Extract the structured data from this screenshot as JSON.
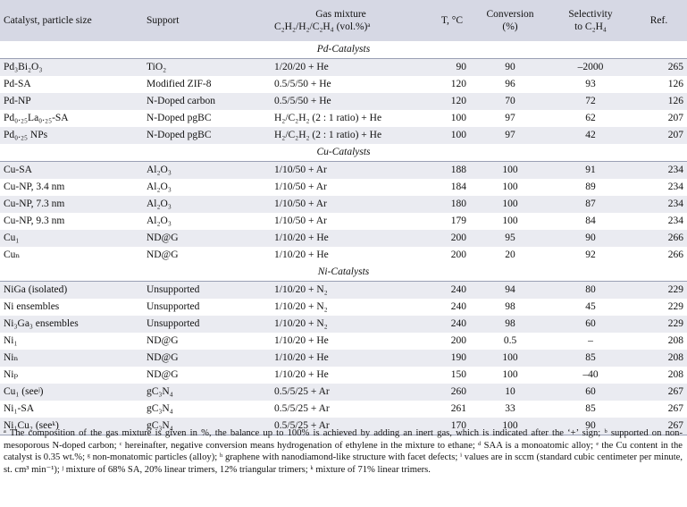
{
  "header": {
    "catalyst": "Catalyst, particle size",
    "support": "Support",
    "gas_line1": "Gas mixture",
    "gas_line2": "C₂H₂/H₂/C₂H₄ (vol.%)ᵃ",
    "temperature": "T, °C",
    "conversion_line1": "Conversion",
    "conversion_line2": "(%)",
    "selectivity_line1": "Selectivity",
    "selectivity_line2": "to C₂H₄",
    "ref": "Ref."
  },
  "sections": [
    {
      "title": "Pd-Catalysts",
      "rows": [
        {
          "catalyst": "Pd₃Bi₂O₃",
          "support": "TiO₂",
          "gas": "1/20/20 + He",
          "t": "90",
          "conversion": "90",
          "selectivity": "–2000",
          "ref": "265"
        },
        {
          "catalyst": "Pd-SA",
          "support": "Modified ZIF-8",
          "gas": "0.5/5/50 + He",
          "t": "120",
          "conversion": "96",
          "selectivity": "93",
          "ref": "126"
        },
        {
          "catalyst": "Pd-NP",
          "support": "N-Doped carbon",
          "gas": "0.5/5/50 + He",
          "t": "120",
          "conversion": "70",
          "selectivity": "72",
          "ref": "126"
        },
        {
          "catalyst": "Pd₀.₂₅La₀.₂₅-SA",
          "support": "N-Doped pgBC",
          "gas": "H₂/C₂H₂ (2 : 1 ratio) + He",
          "t": "100",
          "conversion": "97",
          "selectivity": "62",
          "ref": "207"
        },
        {
          "catalyst": "Pd₀.₂₅ NPs",
          "support": "N-Doped pgBC",
          "gas": "H₂/C₂H₂ (2 : 1 ratio) + He",
          "t": "100",
          "conversion": "97",
          "selectivity": "42",
          "ref": "207"
        }
      ]
    },
    {
      "title": "Cu-Catalysts",
      "rows": [
        {
          "catalyst": "Cu-SA",
          "support": "Al₂O₃",
          "gas": "1/10/50 + Ar",
          "t": "188",
          "conversion": "100",
          "selectivity": "91",
          "ref": "234"
        },
        {
          "catalyst": "Cu-NP, 3.4 nm",
          "support": "Al₂O₃",
          "gas": "1/10/50 + Ar",
          "t": "184",
          "conversion": "100",
          "selectivity": "89",
          "ref": "234"
        },
        {
          "catalyst": "Cu-NP, 7.3 nm",
          "support": "Al₂O₃",
          "gas": "1/10/50 + Ar",
          "t": "180",
          "conversion": "100",
          "selectivity": "87",
          "ref": "234"
        },
        {
          "catalyst": "Cu-NP, 9.3 nm",
          "support": "Al₂O₃",
          "gas": "1/10/50 + Ar",
          "t": "179",
          "conversion": "100",
          "selectivity": "84",
          "ref": "234"
        },
        {
          "catalyst": "Cu₁",
          "support": "ND@G",
          "gas": "1/10/20 + He",
          "t": "200",
          "conversion": "95",
          "selectivity": "90",
          "ref": "266"
        },
        {
          "catalyst": "Cuₙ",
          "support": "ND@G",
          "gas": "1/10/20 + He",
          "t": "200",
          "conversion": "20",
          "selectivity": "92",
          "ref": "266"
        }
      ]
    },
    {
      "title": "Ni-Catalysts",
      "rows": [
        {
          "catalyst": "NiGa (isolated)",
          "support": "Unsupported",
          "gas": "1/10/20 + N₂",
          "t": "240",
          "conversion": "94",
          "selectivity": "80",
          "ref": "229"
        },
        {
          "catalyst": "Ni ensembles",
          "support": "Unsupported",
          "gas": "1/10/20 + N₂",
          "t": "240",
          "conversion": "98",
          "selectivity": "45",
          "ref": "229"
        },
        {
          "catalyst": "Ni₃Ga₃ ensembles",
          "support": "Unsupported",
          "gas": "1/10/20 + N₂",
          "t": "240",
          "conversion": "98",
          "selectivity": "60",
          "ref": "229"
        },
        {
          "catalyst": "Ni₁",
          "support": "ND@G",
          "gas": "1/10/20 + He",
          "t": "200",
          "conversion": "0.5",
          "selectivity": "–",
          "ref": "208"
        },
        {
          "catalyst": "Niₙ",
          "support": "ND@G",
          "gas": "1/10/20 + He",
          "t": "190",
          "conversion": "100",
          "selectivity": "85",
          "ref": "208"
        },
        {
          "catalyst": "Niₚ",
          "support": "ND@G",
          "gas": "1/10/20 + He",
          "t": "150",
          "conversion": "100",
          "selectivity": "–40",
          "ref": "208"
        },
        {
          "catalyst": "Cu₁ (seeʲ)",
          "support": "gC₃N₄",
          "gas": "0.5/5/25 + Ar",
          "t": "260",
          "conversion": "10",
          "selectivity": "60",
          "ref": "267"
        },
        {
          "catalyst": "Ni₁-SA",
          "support": "gC₃N₄",
          "gas": "0.5/5/25 + Ar",
          "t": "261",
          "conversion": "33",
          "selectivity": "85",
          "ref": "267"
        },
        {
          "catalyst": "Ni₁Cu₂ (seeᵏ)",
          "support": "gC₃N₄",
          "gas": "0.5/5/25 + Ar",
          "t": "170",
          "conversion": "100",
          "selectivity": "90",
          "ref": "267"
        }
      ]
    }
  ],
  "footnotes": "ᵃ The composition of the gas mixture is given in %, the balance up to 100% is achieved by adding an inert gas, which is indicated after the ‘+’ sign; ᵇ supported on non-mesoporous N-doped carbon; ᶜ hereinafter, negative conversion means hydrogenation of ethylene in the mixture to ethane; ᵈ SAA is a monoatomic alloy; ᵉ the Cu content in the catalyst is 0.35 wt.%; ᵍ non-monatomic particles (alloy); ʰ graphene with nanodiamond-like structure with facet defects; ⁱ values are in sccm (standard cubic centimeter per minute, st. cm³ min⁻¹); ʲ mixture of 68% SA, 20% linear trimers, 12% triangular trimers; ᵏ mixture of 71% linear trimers."
}
